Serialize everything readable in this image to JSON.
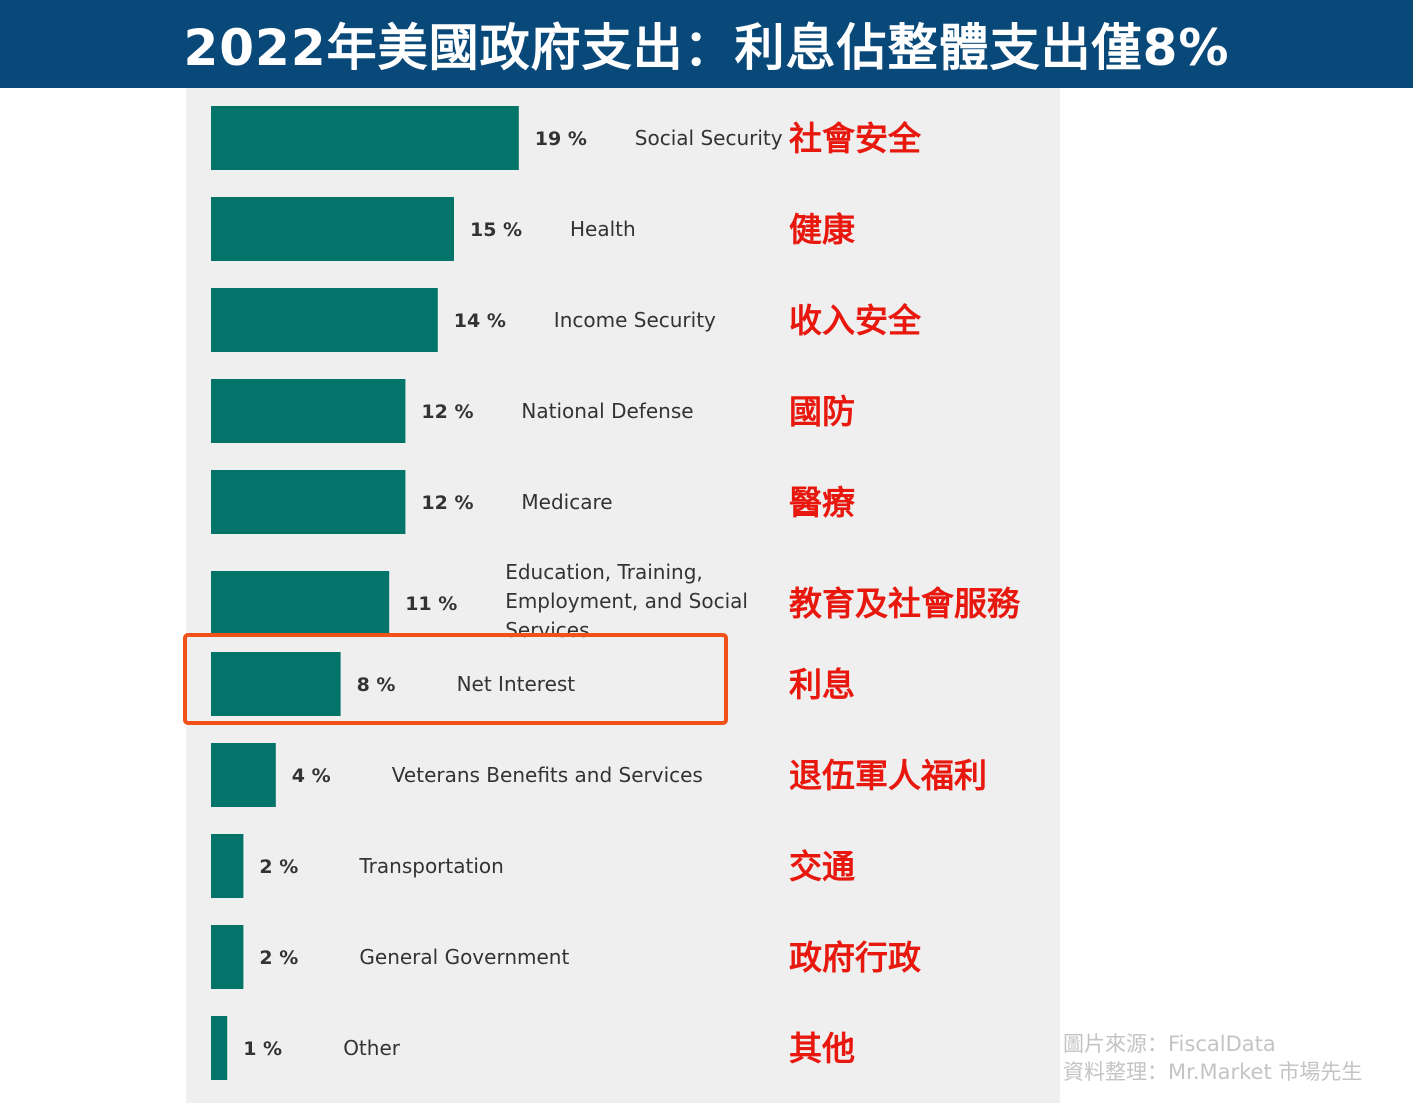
{
  "title": "2022年美國政府支出：利息佔整體支出僅8%",
  "colors": {
    "title_bg": "#08497a",
    "bar": "#03746a",
    "highlight": "#f0521a",
    "translation_text": "#e8180f",
    "panel_bg": "#efefef"
  },
  "chart_data": {
    "type": "bar",
    "orientation": "horizontal",
    "unit": "%",
    "categories": [
      "Social Security",
      "Health",
      "Income Security",
      "National Defense",
      "Medicare",
      "Education, Training, Employment, and Social Services",
      "Net Interest",
      "Veterans Benefits and Services",
      "Transportation",
      "General Government",
      "Other"
    ],
    "category_lines": [
      [
        "Social Security"
      ],
      [
        "Health"
      ],
      [
        "Income Security"
      ],
      [
        "National Defense"
      ],
      [
        "Medicare"
      ],
      [
        "Education, Training,",
        "Employment, and Social",
        "Services"
      ],
      [
        "Net Interest"
      ],
      [
        "Veterans Benefits and Services"
      ],
      [
        "Transportation"
      ],
      [
        "General Government"
      ],
      [
        "Other"
      ]
    ],
    "values": [
      19,
      15,
      14,
      12,
      12,
      11,
      8,
      4,
      2,
      2,
      1
    ],
    "value_labels": [
      "19 %",
      "15 %",
      "14 %",
      "12 %",
      "12 %",
      "11 %",
      "8 %",
      "4 %",
      "2 %",
      "2 %",
      "1 %"
    ],
    "translations": [
      "社會安全",
      "健康",
      "收入安全",
      "國防",
      "醫療",
      "教育及社會服務",
      "利息",
      "退伍軍人福利",
      "交通",
      "政府行政",
      "其他"
    ],
    "highlighted_category": "Net Interest",
    "xlabel": "",
    "ylabel": "",
    "grid": false,
    "legend": "none"
  },
  "credits": {
    "source": "圖片來源：FiscalData",
    "compiled_by": "資料整理：Mr.Market 市場先生"
  }
}
